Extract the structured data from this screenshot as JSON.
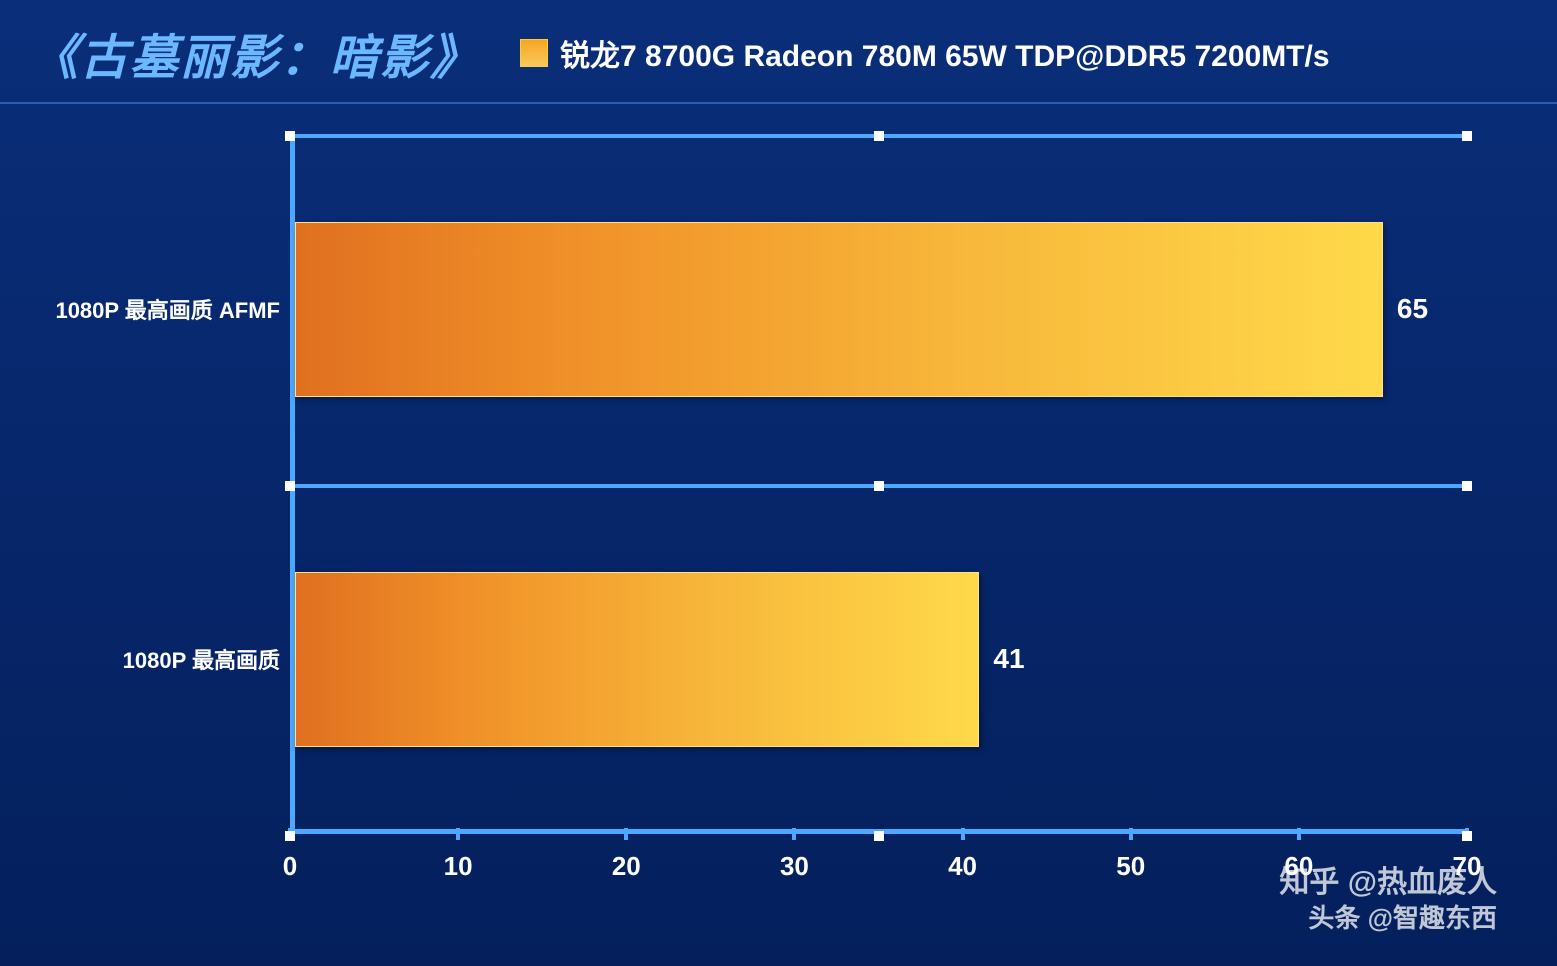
{
  "title": "《古墓丽影：暗影》",
  "legend": {
    "label": "锐龙7 8700G Radeon 780M 65W TDP@DDR5 7200MT/s",
    "swatch_gradient": [
      "#f5a623",
      "#f7c95c"
    ]
  },
  "chart": {
    "type": "bar-horizontal",
    "background_gradient": [
      "#0a2e7a",
      "#041f5c"
    ],
    "axis_color": "#4ea8ff",
    "tick_marker_color": "#ffffff",
    "text_color": "#ffffff",
    "xlim": [
      0,
      70
    ],
    "xtick_step": 10,
    "xticks": [
      0,
      10,
      20,
      30,
      40,
      50,
      60,
      70
    ],
    "bar_gradient": [
      "#e07020",
      "#f09028",
      "#f7b63a",
      "#ffd94a"
    ],
    "bar_border": "#ffe28a",
    "value_fontsize": 28,
    "label_fontsize": 22,
    "tick_fontsize": 26,
    "categories": [
      {
        "label": "1080P 最高画质 AFMF",
        "value": 65
      },
      {
        "label": "1080P 最高画质",
        "value": 41
      }
    ]
  },
  "watermark": {
    "line1": "知乎 @热血废人",
    "line2": "头条 @智趣东西"
  }
}
